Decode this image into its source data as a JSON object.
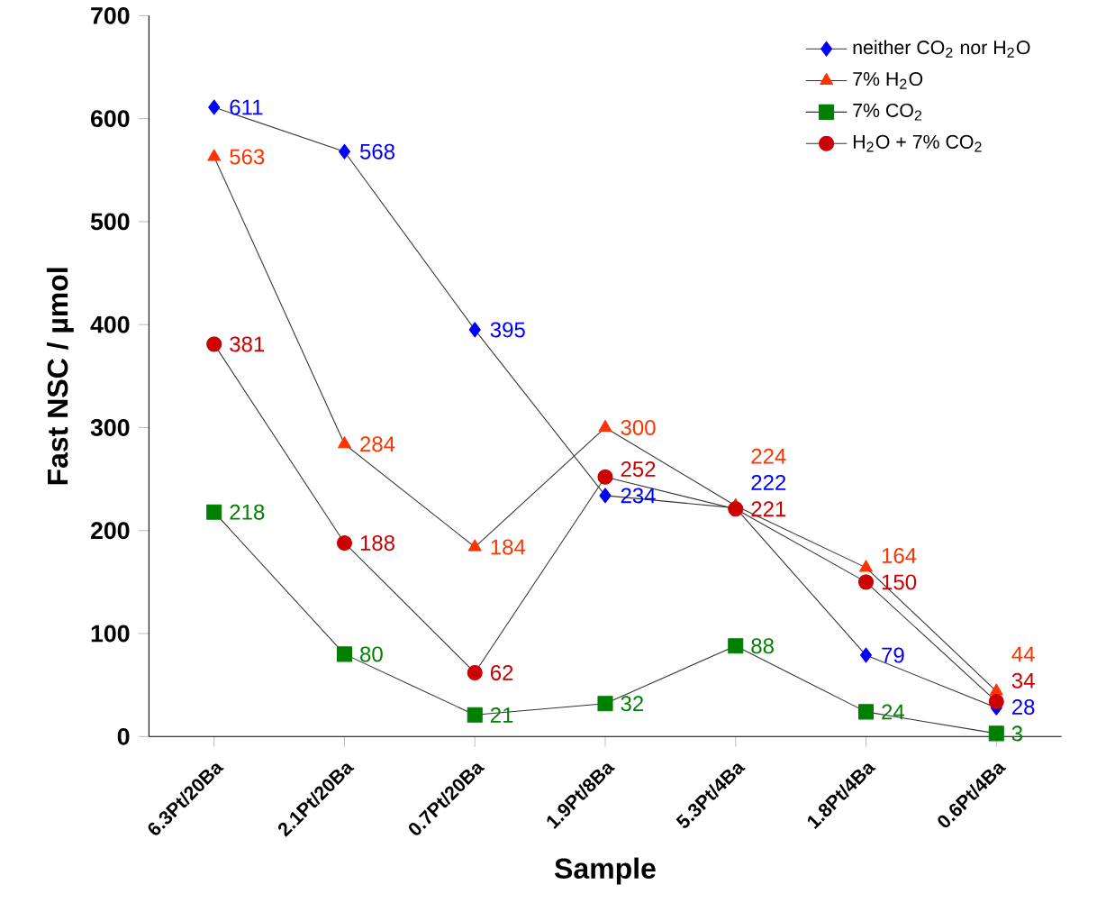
{
  "chart_data": {
    "type": "line",
    "xlabel": "Sample",
    "ylabel": "Fast NSC / µmol",
    "categories": [
      "6.3Pt/20Ba",
      "2.1Pt/20Ba",
      "0.7Pt/20Ba",
      "1.9Pt/8Ba",
      "5.3Pt/4Ba",
      "1.8Pt/4Ba",
      "0.6Pt/4Ba"
    ],
    "series": [
      {
        "name": "neither CO$_{2}$ nor H$_{2}$O",
        "color": "#0000ff",
        "marker": "diamond",
        "values": [
          611,
          568,
          395,
          234,
          222,
          79,
          28
        ]
      },
      {
        "name": "7% H$_{2}$O",
        "color": "#ff3300",
        "marker": "triangle",
        "values": [
          563,
          284,
          184,
          300,
          224,
          164,
          44
        ]
      },
      {
        "name": "7% CO$_{2}$",
        "color": "#008000",
        "marker": "square",
        "values": [
          218,
          80,
          21,
          32,
          88,
          24,
          3
        ]
      },
      {
        "name": "H$_{2}$O + 7% CO$_{2}$",
        "color": "#cc0000",
        "marker": "circle",
        "values": [
          381,
          188,
          62,
          252,
          221,
          150,
          34
        ]
      }
    ],
    "ylim": [
      0,
      700
    ],
    "yticks": [
      0,
      100,
      200,
      300,
      400,
      500,
      600,
      700
    ],
    "data_labels": true,
    "legend": "top right",
    "grid": false
  }
}
